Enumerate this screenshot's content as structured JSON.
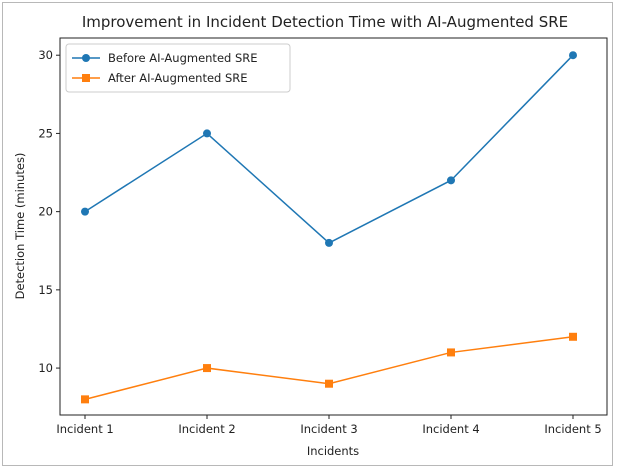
{
  "chart_data": {
    "type": "line",
    "title": "Improvement in Incident Detection Time with AI-Augmented SRE",
    "xlabel": "Incidents",
    "ylabel": "Detection Time (minutes)",
    "categories": [
      "Incident 1",
      "Incident 2",
      "Incident 3",
      "Incident 4",
      "Incident 5"
    ],
    "ylim": [
      7.0,
      31.1
    ],
    "yticks": [
      10,
      15,
      20,
      25,
      30
    ],
    "grid": false,
    "legend_position": "top-left",
    "series": [
      {
        "name": "Before AI-Augmented SRE",
        "values": [
          20,
          25,
          18,
          22,
          30
        ],
        "color": "#1f77b4",
        "marker": "circle"
      },
      {
        "name": "After AI-Augmented SRE",
        "values": [
          8,
          10,
          9,
          11,
          12
        ],
        "color": "#ff7f0e",
        "marker": "square"
      }
    ]
  }
}
